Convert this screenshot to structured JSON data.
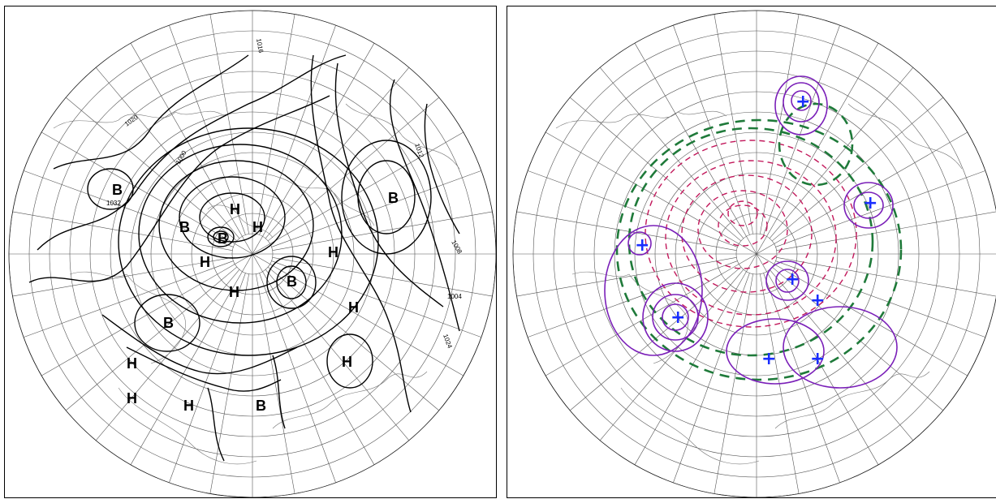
{
  "panels": [
    {
      "name": "pressure-isobars",
      "labels": [
        {
          "text": "B",
          "key": "B1"
        },
        {
          "text": "B",
          "key": "B2"
        },
        {
          "text": "B",
          "key": "B3"
        },
        {
          "text": "B",
          "key": "B4"
        },
        {
          "text": "B",
          "key": "B5"
        },
        {
          "text": "B",
          "key": "B6"
        },
        {
          "text": "B",
          "key": "B7"
        },
        {
          "text": "H",
          "key": "H1"
        },
        {
          "text": "H",
          "key": "H2"
        },
        {
          "text": "H",
          "key": "H3"
        },
        {
          "text": "H",
          "key": "H4"
        },
        {
          "text": "H",
          "key": "H5"
        },
        {
          "text": "H",
          "key": "H6"
        },
        {
          "text": "H",
          "key": "H7"
        },
        {
          "text": "H",
          "key": "H8"
        },
        {
          "text": "H",
          "key": "H9"
        },
        {
          "text": "H",
          "key": "H10"
        }
      ],
      "isobar_labels": [
        "1020",
        "1016",
        "1012",
        "1008",
        "1004",
        "1000",
        "1024",
        "1032"
      ],
      "line_color": "#000000"
    },
    {
      "name": "anomaly-field",
      "positive_contour_color": "#7a1fb8",
      "negative_contour_color": "#c2185b",
      "zero_contour_color": "#1f7a3a",
      "center_marker_color": "#1a2eff",
      "markers": [
        "+",
        "+",
        "+",
        "+",
        "+",
        "+",
        "+",
        "+",
        "+"
      ]
    }
  ]
}
